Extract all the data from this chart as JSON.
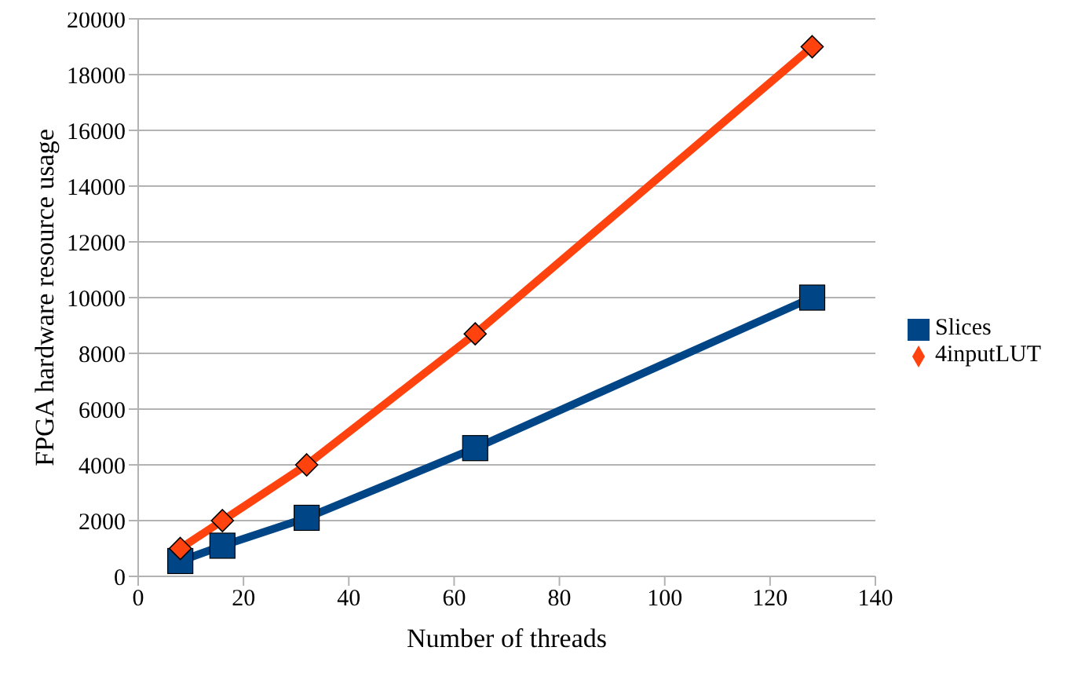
{
  "chart_data": {
    "type": "line",
    "xlabel": "Number of threads",
    "ylabel": "FPGA hardware resource usage",
    "x": [
      8,
      16,
      32,
      64,
      128
    ],
    "series": [
      {
        "name": "Slices",
        "color": "#004586",
        "marker": "square",
        "values": [
          550,
          1100,
          2100,
          4600,
          10000
        ]
      },
      {
        "name": "4inputLUT",
        "color": "#ff420e",
        "marker": "diamond",
        "values": [
          1000,
          2000,
          4000,
          8700,
          19000
        ]
      }
    ],
    "xlim": [
      0,
      140
    ],
    "xticks": [
      0,
      20,
      40,
      60,
      80,
      100,
      120,
      140
    ],
    "ylim": [
      0,
      20000
    ],
    "yticks": [
      0,
      2000,
      4000,
      6000,
      8000,
      10000,
      12000,
      14000,
      16000,
      18000,
      20000
    ],
    "grid": "y",
    "legend": "right",
    "line_style": "solid"
  }
}
